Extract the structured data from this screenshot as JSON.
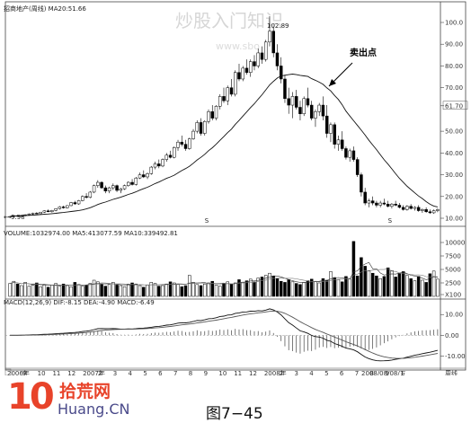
{
  "chart_data": {
    "type": "candlestick",
    "watermark": "炒股入门知识",
    "watermark_url": "www.sbo",
    "price_panel": {
      "title": "招商地产(周线) MA20:51.66",
      "right_axis_ticks": [
        "100.0",
        "90.00",
        "80.00",
        "70.00",
        "61.70",
        "50.00",
        "40.00",
        "30.00",
        "20.00",
        "10.00"
      ],
      "ylim": [
        10,
        100
      ],
      "high_label": "102.89",
      "low_label": "9.98",
      "annotation": "卖出点",
      "marker": "S",
      "candles": [
        [
          10.5,
          11,
          10,
          10.8
        ],
        [
          10.8,
          11.4,
          10.4,
          11.2
        ],
        [
          11.2,
          11.6,
          10.8,
          11
        ],
        [
          11,
          11.5,
          10.5,
          11.3
        ],
        [
          11.3,
          11.8,
          10.9,
          11.6
        ],
        [
          11.6,
          12.2,
          11.2,
          12
        ],
        [
          12,
          12.6,
          11.6,
          12.3
        ],
        [
          12.3,
          12.8,
          11.8,
          12.1
        ],
        [
          12.1,
          12.9,
          11.9,
          12.8
        ],
        [
          12.8,
          13.6,
          12.5,
          13.4
        ],
        [
          13.4,
          14,
          12.8,
          13
        ],
        [
          13,
          13.8,
          12.6,
          13.6
        ],
        [
          13.6,
          14.6,
          13.2,
          14.4
        ],
        [
          14.4,
          15.6,
          14,
          15.2
        ],
        [
          15.2,
          15.8,
          14.4,
          14.8
        ],
        [
          14.8,
          16,
          14.5,
          15.8
        ],
        [
          15.8,
          17.5,
          15.5,
          17.2
        ],
        [
          17.2,
          18,
          16.2,
          16.6
        ],
        [
          16.6,
          18.4,
          16.2,
          18.1
        ],
        [
          18.1,
          20.5,
          17.8,
          20
        ],
        [
          20,
          21.5,
          19,
          19.6
        ],
        [
          19.6,
          22.5,
          19.2,
          22
        ],
        [
          22,
          25.5,
          21.5,
          25
        ],
        [
          25,
          27.5,
          24,
          26.5
        ],
        [
          26.5,
          27,
          23.5,
          24
        ],
        [
          24,
          25,
          21.5,
          22.5
        ],
        [
          22.5,
          24.5,
          21.5,
          24
        ],
        [
          24,
          26,
          23,
          25
        ],
        [
          25,
          25.5,
          22,
          22.8
        ],
        [
          22.8,
          24,
          21.5,
          23.5
        ],
        [
          23.5,
          25.5,
          23,
          25
        ],
        [
          25,
          27,
          24.5,
          26.5
        ],
        [
          26.5,
          28,
          25,
          25.5
        ],
        [
          25.5,
          29,
          25,
          28.5
        ],
        [
          28.5,
          31,
          28,
          30
        ],
        [
          30,
          32,
          28.5,
          29
        ],
        [
          29,
          31,
          28,
          30.5
        ],
        [
          30.5,
          34,
          30,
          33.5
        ],
        [
          33.5,
          36,
          32.5,
          35
        ],
        [
          35,
          37,
          33,
          34
        ],
        [
          34,
          37.5,
          33.5,
          37
        ],
        [
          37,
          40,
          36,
          39
        ],
        [
          39,
          41,
          37.5,
          38
        ],
        [
          38,
          43,
          37.5,
          42.5
        ],
        [
          42.5,
          46,
          41,
          45
        ],
        [
          45,
          48,
          43,
          44
        ],
        [
          44,
          46,
          41,
          42
        ],
        [
          42,
          47,
          41.5,
          46.5
        ],
        [
          46.5,
          51,
          46,
          50
        ],
        [
          50,
          55,
          49,
          54
        ],
        [
          54,
          56,
          48,
          49
        ],
        [
          49,
          55,
          48,
          54.5
        ],
        [
          54.5,
          60,
          53.5,
          59
        ],
        [
          59,
          62,
          55,
          56
        ],
        [
          56,
          62,
          55,
          61.5
        ],
        [
          61.5,
          67,
          60,
          66
        ],
        [
          66,
          70,
          63,
          64
        ],
        [
          64,
          71,
          62,
          70
        ],
        [
          70,
          74,
          66,
          67
        ],
        [
          67,
          78,
          66,
          77
        ],
        [
          77,
          81,
          73,
          74
        ],
        [
          74,
          80,
          73,
          79
        ],
        [
          79,
          83,
          76,
          77
        ],
        [
          77,
          83,
          75,
          82
        ],
        [
          82,
          85,
          78,
          80
        ],
        [
          80,
          88,
          79,
          86
        ],
        [
          86,
          89,
          81,
          83
        ],
        [
          83,
          92,
          82,
          91
        ],
        [
          91,
          102.9,
          89,
          96
        ],
        [
          96,
          98,
          84,
          86
        ],
        [
          86,
          90,
          78,
          80
        ],
        [
          80,
          84,
          72,
          74
        ],
        [
          74,
          76,
          63,
          65
        ],
        [
          65,
          70,
          58,
          62
        ],
        [
          62,
          68,
          56,
          66
        ],
        [
          66,
          69,
          60,
          61
        ],
        [
          61,
          64,
          55,
          58
        ],
        [
          58,
          66,
          57,
          65
        ],
        [
          65,
          70,
          61,
          62
        ],
        [
          62,
          64,
          55,
          56
        ],
        [
          56,
          60,
          52,
          59
        ],
        [
          59,
          63,
          57,
          62
        ],
        [
          62,
          66,
          55,
          57
        ],
        [
          57,
          62,
          47,
          49
        ],
        [
          49,
          54,
          45,
          53
        ],
        [
          53,
          54,
          42,
          44
        ],
        [
          44,
          48,
          41,
          46
        ],
        [
          46,
          50,
          41,
          42
        ],
        [
          42,
          43,
          37,
          38
        ],
        [
          38,
          42,
          36,
          41
        ],
        [
          41,
          43,
          36,
          37
        ],
        [
          37,
          38,
          29,
          30
        ],
        [
          30,
          31,
          20,
          22
        ],
        [
          22,
          24,
          16,
          17
        ],
        [
          17,
          19,
          15,
          18
        ],
        [
          18,
          20,
          16,
          17
        ],
        [
          17,
          18,
          15,
          16
        ],
        [
          16,
          18,
          15,
          17
        ],
        [
          17,
          19,
          16,
          16.5
        ],
        [
          16.5,
          18,
          15,
          15.5
        ],
        [
          15.5,
          17,
          14.5,
          16.5
        ],
        [
          16.5,
          18,
          15.5,
          16
        ],
        [
          16,
          17,
          14.5,
          15
        ],
        [
          15,
          16,
          13.5,
          14
        ],
        [
          14,
          16,
          13.5,
          15.5
        ],
        [
          15.5,
          16.5,
          14,
          14.5
        ],
        [
          14.5,
          15.5,
          13.5,
          15
        ],
        [
          15,
          16,
          13,
          13.5
        ],
        [
          13.5,
          14.5,
          12.5,
          14
        ],
        [
          14,
          15,
          12.5,
          13
        ],
        [
          13,
          14,
          12,
          12.5
        ],
        [
          12.5,
          14,
          12,
          13.5
        ],
        [
          13.5,
          14.5,
          12.8,
          14
        ]
      ]
    },
    "volume_panel": {
      "title": "VOLUME:1032974.00 MA5:413077.59 MA10:339492.81",
      "right_axis_ticks": [
        "10000",
        "7500",
        "5000",
        "2500",
        "X100"
      ],
      "ylim": [
        0,
        11000
      ],
      "values": [
        2400,
        2800,
        2300,
        2000,
        2600,
        1900,
        2100,
        2500,
        1800,
        2200,
        1700,
        2100,
        2400,
        1900,
        2300,
        2000,
        1800,
        2600,
        2200,
        1900,
        2100,
        2400,
        3000,
        2700,
        2300,
        1900,
        2200,
        2600,
        2100,
        2000,
        1800,
        2200,
        2500,
        2300,
        2000,
        1700,
        2100,
        2600,
        2400,
        1900,
        2000,
        2300,
        2700,
        2500,
        2200,
        1800,
        2000,
        3900,
        2600,
        2200,
        2000,
        2300,
        2500,
        2800,
        2100,
        1900,
        2400,
        2700,
        2300,
        2500,
        3100,
        2600,
        2900,
        3200,
        2700,
        3400,
        3600,
        3900,
        4300,
        3800,
        3300,
        2800,
        2600,
        3100,
        2700,
        2400,
        2200,
        2600,
        2900,
        3200,
        2800,
        2500,
        3300,
        3000,
        4600,
        3500,
        3100,
        2700,
        3700,
        3200,
        10200,
        3800,
        7200,
        5600,
        4700,
        4300,
        3800,
        3300,
        3700,
        5300,
        4800,
        3600,
        4200,
        4600,
        3900,
        3300,
        2900,
        3700,
        3000,
        2600,
        4200,
        4700,
        3200
      ]
    },
    "macd_panel": {
      "title": "MACD(12,26,9) DIF:-8.15 DEA:-4.90 MACD:-6.49",
      "right_axis_ticks": [
        "10.00",
        "0.00",
        "-10.00"
      ],
      "ylim": [
        -15,
        14
      ]
    },
    "x_axis_labels": [
      "2006年",
      "9",
      "10",
      "11",
      "12",
      "2007年",
      "2",
      "3",
      "4",
      "5",
      "6",
      "7",
      "8",
      "9",
      "10",
      "11",
      "12",
      "2008年",
      "2",
      "3",
      "4",
      "5",
      "6",
      "7",
      "8",
      "9",
      "1",
      "周线"
    ],
    "date_marker": "2008/08/08/五"
  },
  "footer": {
    "logo_number": "10",
    "logo_cn": "拾荒网",
    "logo_url": "Huang.CN",
    "caption": "图7−45"
  }
}
